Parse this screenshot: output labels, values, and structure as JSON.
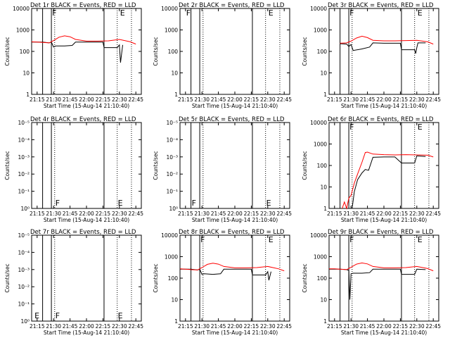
{
  "colors": {
    "events": "#000000",
    "lld": "#ff0000",
    "background": "#ffffff"
  },
  "chart_data": {
    "type": "line",
    "xlabel": "Start Time (15-Aug-14 21:10:40)",
    "ylabel": "Counts/sec",
    "x_ticks": [
      "21:15",
      "21:30",
      "21:45",
      "22:00",
      "22:15",
      "22:30",
      "22:45"
    ],
    "x_range": [
      "21:10",
      "22:50"
    ],
    "y_scale": "log",
    "y_range": [
      1,
      10000
    ],
    "marker_lines": [
      {
        "time": "21:20",
        "style": "solid"
      },
      {
        "time": "21:28",
        "style": "solid"
      },
      {
        "time": "21:31",
        "style": "dotted"
      },
      {
        "time": "22:16",
        "style": "solid"
      },
      {
        "time": "22:28",
        "style": "dotted"
      },
      {
        "time": "22:41",
        "style": "dotted"
      }
    ],
    "panels": [
      {
        "title": "Det 1r BLACK = Events, RED = LLD",
        "y_ticks": [
          "1",
          "10",
          "100",
          "1000",
          "10000"
        ],
        "flags": [
          {
            "text": "F",
            "time": "21:28",
            "pos": "top"
          },
          {
            "text": "E",
            "time": "22:30",
            "pos": "top"
          }
        ],
        "series": [
          {
            "name": "Events",
            "x": [
              "21:10",
              "21:20",
              "21:26",
              "21:28",
              "21:30",
              "21:32",
              "21:40",
              "21:47",
              "21:50",
              "22:00",
              "22:10",
              "22:15",
              "22:16",
              "22:28",
              "22:30",
              "22:31",
              "22:33"
            ],
            "y": [
              270,
              270,
              250,
              270,
              160,
              180,
              180,
              190,
              270,
              270,
              270,
              270,
              150,
              150,
              200,
              30,
              200
            ]
          },
          {
            "name": "LLD",
            "x": [
              "21:10",
              "21:15",
              "21:20",
              "21:26",
              "21:30",
              "21:35",
              "21:40",
              "21:45",
              "21:50",
              "22:00",
              "22:10",
              "22:20",
              "22:30",
              "22:40",
              "22:45"
            ],
            "y": [
              280,
              270,
              260,
              250,
              320,
              460,
              530,
              480,
              360,
              300,
              300,
              310,
              360,
              280,
              220
            ]
          }
        ]
      },
      {
        "title": "Det 2r BLACK = Events, RED = LLD",
        "y_ticks": [
          "1",
          "10",
          "100",
          "1000",
          "10000"
        ],
        "flags": [
          {
            "text": "F",
            "time": "21:15",
            "pos": "top"
          },
          {
            "text": "E",
            "time": "22:30",
            "pos": "top"
          }
        ],
        "series": []
      },
      {
        "title": "Det 3r BLACK = Events, RED = LLD",
        "y_ticks": [
          "1",
          "10",
          "100",
          "1000",
          "10000"
        ],
        "flags": [
          {
            "text": "F",
            "time": "21:28",
            "pos": "top"
          },
          {
            "text": "E",
            "time": "22:30",
            "pos": "top"
          }
        ],
        "series": [
          {
            "name": "Events",
            "x": [
              "21:20",
              "21:26",
              "21:28",
              "21:30",
              "21:32",
              "21:40",
              "21:47",
              "21:50",
              "22:00",
              "22:10",
              "22:15",
              "22:16",
              "22:28",
              "22:29",
              "22:30",
              "22:31",
              "22:38"
            ],
            "y": [
              230,
              220,
              170,
              210,
              110,
              130,
              160,
              250,
              240,
              240,
              240,
              120,
              120,
              80,
              150,
              250,
              250
            ]
          },
          {
            "name": "LLD",
            "x": [
              "21:20",
              "21:26",
              "21:30",
              "21:35",
              "21:40",
              "21:45",
              "21:50",
              "22:00",
              "22:10",
              "22:20",
              "22:30",
              "22:40",
              "22:45"
            ],
            "y": [
              240,
              250,
              300,
              420,
              510,
              440,
              330,
              310,
              310,
              320,
              330,
              280,
              220
            ]
          }
        ]
      },
      {
        "title": "Det 4r BLACK = Events, RED = LLD",
        "y_ticks": [
          "10⁰",
          "10⁻¹",
          "10⁻²",
          "10⁻³",
          "10⁻⁴",
          "10⁻⁵"
        ],
        "flags": [
          {
            "text": "F",
            "time": "21:31",
            "pos": "bottom"
          },
          {
            "text": "E",
            "time": "22:28",
            "pos": "bottom"
          }
        ],
        "series": []
      },
      {
        "title": "Det 5r BLACK = Events, RED = LLD",
        "y_ticks": [
          "10⁰",
          "10⁻¹",
          "10⁻²",
          "10⁻³",
          "10⁻⁴",
          "10⁻⁵"
        ],
        "flags": [
          {
            "text": "F",
            "time": "21:20",
            "pos": "bottom"
          },
          {
            "text": "E",
            "time": "22:28",
            "pos": "bottom"
          }
        ],
        "series": []
      },
      {
        "title": "Det 6r BLACK = Events, RED = LLD",
        "y_ticks": [
          "1",
          "10",
          "100",
          "1000",
          "10000"
        ],
        "flags": [
          {
            "text": "F",
            "time": "21:28",
            "pos": "top"
          },
          {
            "text": "E",
            "time": "22:30",
            "pos": "top"
          }
        ],
        "series": [
          {
            "name": "Events",
            "x": [
              "21:31",
              "21:33",
              "21:36",
              "21:40",
              "21:43",
              "21:46",
              "21:50",
              "22:00",
              "22:10",
              "22:16",
              "22:28",
              "22:30",
              "22:38"
            ],
            "y": [
              1,
              6,
              22,
              45,
              65,
              60,
              240,
              250,
              250,
              130,
              130,
              280,
              260
            ]
          },
          {
            "name": "LLD",
            "x": [
              "21:22",
              "21:24",
              "21:26",
              "21:28",
              "21:30",
              "21:33",
              "21:36",
              "21:40",
              "21:43",
              "21:45",
              "21:50",
              "22:00",
              "22:10",
              "22:20",
              "22:30",
              "22:40",
              "22:45"
            ],
            "y": [
              1,
              2,
              1,
              3,
              4,
              15,
              40,
              140,
              400,
              420,
              340,
              320,
              310,
              320,
              310,
              300,
              250
            ]
          }
        ]
      },
      {
        "title": "Det 7r BLACK = Events, RED = LLD",
        "y_ticks": [
          "10⁰",
          "10⁻¹",
          "10⁻²",
          "10⁻³",
          "10⁻⁴",
          "10⁻⁵"
        ],
        "flags": [
          {
            "text": "F",
            "time": "21:31",
            "pos": "bottom"
          },
          {
            "text": "E",
            "time": "21:12",
            "pos": "bottom"
          },
          {
            "text": "E",
            "time": "22:28",
            "pos": "bottom"
          }
        ],
        "series": []
      },
      {
        "title": "Det 8r BLACK = Events, RED = LLD",
        "y_ticks": [
          "1",
          "10",
          "100",
          "1000",
          "10000"
        ],
        "flags": [
          {
            "text": "F",
            "time": "21:28",
            "pos": "top"
          },
          {
            "text": "E",
            "time": "22:30",
            "pos": "top"
          }
        ],
        "series": [
          {
            "name": "Events",
            "x": [
              "21:10",
              "21:20",
              "21:26",
              "21:28",
              "21:30",
              "21:32",
              "21:40",
              "21:47",
              "21:50",
              "22:00",
              "22:10",
              "22:15",
              "22:16",
              "22:28",
              "22:30",
              "22:31",
              "22:33"
            ],
            "y": [
              260,
              260,
              240,
              260,
              150,
              160,
              150,
              160,
              260,
              260,
              260,
              260,
              140,
              140,
              200,
              80,
              200
            ]
          },
          {
            "name": "LLD",
            "x": [
              "21:10",
              "21:15",
              "21:20",
              "21:26",
              "21:30",
              "21:35",
              "21:40",
              "21:45",
              "21:50",
              "22:00",
              "22:10",
              "22:20",
              "22:30",
              "22:40",
              "22:45"
            ],
            "y": [
              270,
              260,
              250,
              240,
              310,
              440,
              500,
              450,
              350,
              300,
              300,
              310,
              350,
              270,
              220
            ]
          }
        ]
      },
      {
        "title": "Det 9r BLACK = Events, RED = LLD",
        "y_ticks": [
          "1",
          "10",
          "100",
          "1000",
          "10000"
        ],
        "flags": [
          {
            "text": "F",
            "time": "21:28",
            "pos": "top"
          },
          {
            "text": "E",
            "time": "22:30",
            "pos": "top"
          }
        ],
        "series": [
          {
            "name": "Events",
            "x": [
              "21:10",
              "21:20",
              "21:26",
              "21:28",
              "21:29",
              "21:30",
              "21:32",
              "21:40",
              "21:47",
              "21:50",
              "22:00",
              "22:10",
              "22:15",
              "22:16",
              "22:28",
              "22:30",
              "22:38"
            ],
            "y": [
              260,
              260,
              250,
              230,
              10,
              160,
              170,
              170,
              180,
              260,
              260,
              260,
              260,
              150,
              150,
              260,
              250
            ]
          },
          {
            "name": "LLD",
            "x": [
              "21:10",
              "21:15",
              "21:20",
              "21:26",
              "21:30",
              "21:35",
              "21:40",
              "21:45",
              "21:50",
              "22:00",
              "22:10",
              "22:20",
              "22:30",
              "22:40",
              "22:45"
            ],
            "y": [
              270,
              270,
              260,
              250,
              320,
              450,
              510,
              460,
              350,
              300,
              300,
              310,
              350,
              280,
              220
            ]
          }
        ]
      }
    ]
  }
}
